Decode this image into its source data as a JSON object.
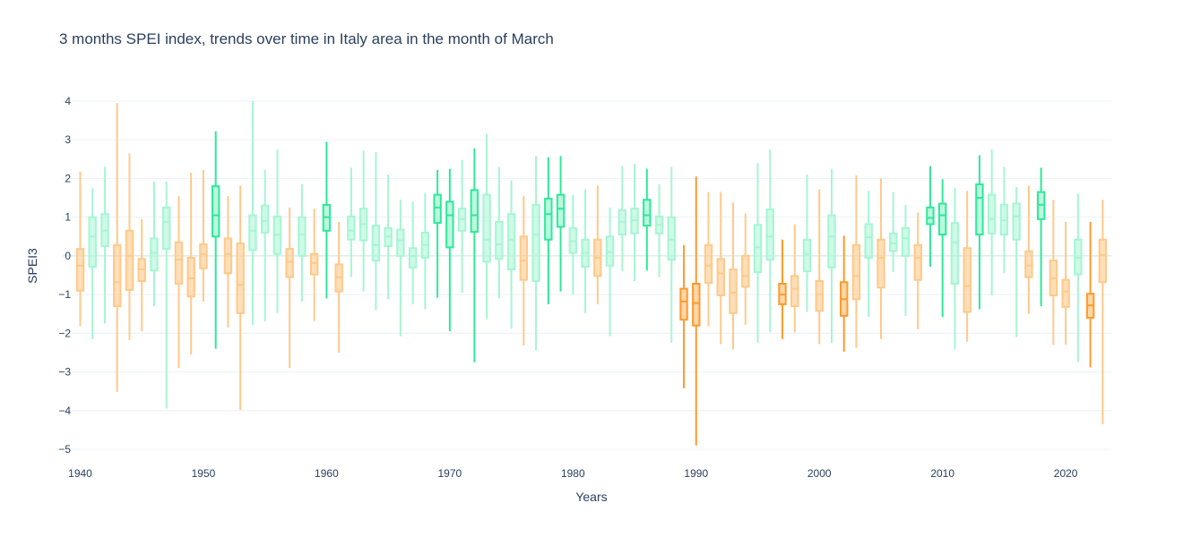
{
  "chart_data": {
    "type": "box",
    "title": "3 months SPEI index, trends over time in Italy area in the month of March",
    "xlabel": "Years",
    "ylabel": "SPEI3",
    "xlim": [
      1939.6,
      2023.7
    ],
    "ylim": [
      -5.3,
      4.3
    ],
    "x_ticks": [
      1940,
      1950,
      1960,
      1970,
      1980,
      1990,
      2000,
      2010,
      2020
    ],
    "y_ticks": [
      4,
      3,
      2,
      1,
      0,
      -1,
      -2,
      -3,
      -4,
      -5
    ],
    "y_tick_labels": [
      "4",
      "3",
      "2",
      "1",
      "0",
      "−1",
      "−2",
      "−3",
      "−4",
      "−5"
    ],
    "grid": true,
    "legend": "none",
    "colors": {
      "wet_strong": "#2ee89a",
      "wet_light": "#a6f5d4",
      "dry_strong": "#ff9a2e",
      "dry_light": "#ffc98a",
      "grid": "#ebf0f8",
      "zero_line": "#c8e6d8"
    },
    "boxes": [
      {
        "year": 1940,
        "q1": -0.9,
        "median": -0.25,
        "q3": 0.18,
        "low": -1.82,
        "high": 2.18,
        "cls": "dry_light"
      },
      {
        "year": 1941,
        "q1": -0.28,
        "median": 0.5,
        "q3": 1.0,
        "low": -2.15,
        "high": 1.75,
        "cls": "wet_light"
      },
      {
        "year": 1942,
        "q1": 0.25,
        "median": 0.65,
        "q3": 1.08,
        "low": -1.75,
        "high": 2.3,
        "cls": "wet_light"
      },
      {
        "year": 1943,
        "q1": -1.3,
        "median": -0.68,
        "q3": 0.28,
        "low": -3.52,
        "high": 3.95,
        "cls": "dry_light"
      },
      {
        "year": 1944,
        "q1": -0.88,
        "median": 0.0,
        "q3": 0.65,
        "low": -2.18,
        "high": 2.65,
        "cls": "dry_light"
      },
      {
        "year": 1945,
        "q1": -0.65,
        "median": -0.35,
        "q3": -0.08,
        "low": -1.95,
        "high": 0.95,
        "cls": "dry_light"
      },
      {
        "year": 1946,
        "q1": -0.38,
        "median": 0.08,
        "q3": 0.45,
        "low": -1.3,
        "high": 1.92,
        "cls": "wet_light"
      },
      {
        "year": 1947,
        "q1": 0.18,
        "median": 0.88,
        "q3": 1.25,
        "low": -3.95,
        "high": 1.92,
        "cls": "wet_light"
      },
      {
        "year": 1948,
        "q1": -0.72,
        "median": -0.1,
        "q3": 0.35,
        "low": -2.9,
        "high": 1.55,
        "cls": "dry_light"
      },
      {
        "year": 1949,
        "q1": -1.05,
        "median": -0.58,
        "q3": -0.05,
        "low": -2.55,
        "high": 2.15,
        "cls": "dry_light"
      },
      {
        "year": 1950,
        "q1": -0.32,
        "median": 0.05,
        "q3": 0.3,
        "low": -1.18,
        "high": 2.22,
        "cls": "dry_light"
      },
      {
        "year": 1951,
        "q1": 0.5,
        "median": 1.05,
        "q3": 1.8,
        "low": -2.4,
        "high": 3.22,
        "cls": "wet_strong"
      },
      {
        "year": 1952,
        "q1": -0.45,
        "median": 0.05,
        "q3": 0.45,
        "low": -1.85,
        "high": 1.55,
        "cls": "dry_light"
      },
      {
        "year": 1953,
        "q1": -1.48,
        "median": -0.75,
        "q3": 0.32,
        "low": -3.98,
        "high": 1.82,
        "cls": "dry_light"
      },
      {
        "year": 1954,
        "q1": 0.15,
        "median": 0.65,
        "q3": 1.05,
        "low": -1.78,
        "high": 4.0,
        "cls": "wet_light"
      },
      {
        "year": 1955,
        "q1": 0.6,
        "median": 0.9,
        "q3": 1.3,
        "low": -1.7,
        "high": 2.22,
        "cls": "wet_light"
      },
      {
        "year": 1956,
        "q1": 0.05,
        "median": 0.55,
        "q3": 1.02,
        "low": -1.48,
        "high": 2.75,
        "cls": "wet_light"
      },
      {
        "year": 1957,
        "q1": -0.55,
        "median": -0.15,
        "q3": 0.18,
        "low": -2.9,
        "high": 1.25,
        "cls": "dry_light"
      },
      {
        "year": 1958,
        "q1": 0.0,
        "median": 0.55,
        "q3": 1.0,
        "low": -1.18,
        "high": 1.85,
        "cls": "wet_light"
      },
      {
        "year": 1959,
        "q1": -0.48,
        "median": -0.18,
        "q3": 0.05,
        "low": -1.68,
        "high": 1.22,
        "cls": "dry_light"
      },
      {
        "year": 1960,
        "q1": 0.65,
        "median": 1.0,
        "q3": 1.32,
        "low": -1.1,
        "high": 2.95,
        "cls": "wet_strong"
      },
      {
        "year": 1961,
        "q1": -0.92,
        "median": -0.55,
        "q3": -0.22,
        "low": -2.5,
        "high": 0.88,
        "cls": "dry_light"
      },
      {
        "year": 1962,
        "q1": 0.42,
        "median": 0.65,
        "q3": 1.02,
        "low": -0.55,
        "high": 2.28,
        "cls": "wet_light"
      },
      {
        "year": 1963,
        "q1": 0.4,
        "median": 0.82,
        "q3": 1.22,
        "low": -0.92,
        "high": 2.72,
        "cls": "wet_light"
      },
      {
        "year": 1964,
        "q1": -0.12,
        "median": 0.28,
        "q3": 0.78,
        "low": -1.4,
        "high": 2.68,
        "cls": "wet_light"
      },
      {
        "year": 1965,
        "q1": 0.25,
        "median": 0.5,
        "q3": 0.72,
        "low": -1.12,
        "high": 2.1,
        "cls": "wet_light"
      },
      {
        "year": 1966,
        "q1": 0.0,
        "median": 0.4,
        "q3": 0.68,
        "low": -2.08,
        "high": 1.45,
        "cls": "wet_light"
      },
      {
        "year": 1967,
        "q1": -0.3,
        "median": 0.0,
        "q3": 0.2,
        "low": -1.25,
        "high": 1.4,
        "cls": "wet_light"
      },
      {
        "year": 1968,
        "q1": -0.05,
        "median": 0.28,
        "q3": 0.6,
        "low": -1.38,
        "high": 1.62,
        "cls": "wet_light"
      },
      {
        "year": 1969,
        "q1": 0.85,
        "median": 1.25,
        "q3": 1.58,
        "low": -1.08,
        "high": 2.22,
        "cls": "wet_strong"
      },
      {
        "year": 1970,
        "q1": 0.22,
        "median": 1.05,
        "q3": 1.4,
        "low": -1.95,
        "high": 2.25,
        "cls": "wet_strong"
      },
      {
        "year": 1971,
        "q1": 0.65,
        "median": 0.95,
        "q3": 1.22,
        "low": -0.95,
        "high": 2.48,
        "cls": "wet_light"
      },
      {
        "year": 1972,
        "q1": 0.62,
        "median": 1.05,
        "q3": 1.7,
        "low": -2.75,
        "high": 2.78,
        "cls": "wet_strong"
      },
      {
        "year": 1973,
        "q1": -0.15,
        "median": 0.42,
        "q3": 1.58,
        "low": -1.62,
        "high": 3.15,
        "cls": "wet_light"
      },
      {
        "year": 1974,
        "q1": -0.08,
        "median": 0.3,
        "q3": 0.88,
        "low": -1.1,
        "high": 2.3,
        "cls": "wet_light"
      },
      {
        "year": 1975,
        "q1": -0.35,
        "median": 0.42,
        "q3": 1.08,
        "low": -1.88,
        "high": 1.95,
        "cls": "wet_light"
      },
      {
        "year": 1976,
        "q1": -0.62,
        "median": -0.12,
        "q3": 0.5,
        "low": -2.32,
        "high": 1.55,
        "cls": "dry_light"
      },
      {
        "year": 1977,
        "q1": -0.65,
        "median": 0.55,
        "q3": 1.32,
        "low": -2.45,
        "high": 2.58,
        "cls": "wet_light"
      },
      {
        "year": 1978,
        "q1": 0.42,
        "median": 1.08,
        "q3": 1.48,
        "low": -1.25,
        "high": 2.55,
        "cls": "wet_strong"
      },
      {
        "year": 1979,
        "q1": 0.75,
        "median": 1.22,
        "q3": 1.58,
        "low": -0.92,
        "high": 2.58,
        "cls": "wet_strong"
      },
      {
        "year": 1980,
        "q1": 0.08,
        "median": 0.38,
        "q3": 0.72,
        "low": -1.0,
        "high": 1.58,
        "cls": "wet_light"
      },
      {
        "year": 1981,
        "q1": -0.28,
        "median": 0.08,
        "q3": 0.42,
        "low": -1.48,
        "high": 1.72,
        "cls": "wet_light"
      },
      {
        "year": 1982,
        "q1": -0.52,
        "median": -0.05,
        "q3": 0.42,
        "low": -1.25,
        "high": 1.82,
        "cls": "dry_light"
      },
      {
        "year": 1983,
        "q1": -0.25,
        "median": 0.1,
        "q3": 0.5,
        "low": -2.08,
        "high": 1.25,
        "cls": "wet_light"
      },
      {
        "year": 1984,
        "q1": 0.55,
        "median": 0.88,
        "q3": 1.18,
        "low": -0.4,
        "high": 2.32,
        "cls": "wet_light"
      },
      {
        "year": 1985,
        "q1": 0.58,
        "median": 0.92,
        "q3": 1.22,
        "low": -0.65,
        "high": 2.38,
        "cls": "wet_light"
      },
      {
        "year": 1986,
        "q1": 0.78,
        "median": 1.05,
        "q3": 1.45,
        "low": -0.38,
        "high": 2.25,
        "cls": "wet_strong"
      },
      {
        "year": 1987,
        "q1": 0.58,
        "median": 0.8,
        "q3": 1.02,
        "low": -0.55,
        "high": 1.85,
        "cls": "wet_light"
      },
      {
        "year": 1988,
        "q1": -0.1,
        "median": 0.42,
        "q3": 1.0,
        "low": -2.25,
        "high": 2.3,
        "cls": "wet_light"
      },
      {
        "year": 1989,
        "q1": -1.65,
        "median": -1.18,
        "q3": -0.85,
        "low": -3.42,
        "high": 0.28,
        "cls": "dry_strong"
      },
      {
        "year": 1990,
        "q1": -1.8,
        "median": -1.22,
        "q3": -0.72,
        "low": -4.9,
        "high": 2.05,
        "cls": "dry_strong"
      },
      {
        "year": 1991,
        "q1": -0.7,
        "median": -0.25,
        "q3": 0.28,
        "low": -1.82,
        "high": 1.65,
        "cls": "dry_light"
      },
      {
        "year": 1992,
        "q1": -1.02,
        "median": -0.45,
        "q3": -0.08,
        "low": -2.28,
        "high": 1.65,
        "cls": "dry_light"
      },
      {
        "year": 1993,
        "q1": -1.48,
        "median": -0.95,
        "q3": -0.35,
        "low": -2.42,
        "high": 1.38,
        "cls": "dry_light"
      },
      {
        "year": 1994,
        "q1": -0.8,
        "median": -0.52,
        "q3": 0.0,
        "low": -1.78,
        "high": 1.1,
        "cls": "dry_light"
      },
      {
        "year": 1995,
        "q1": -0.42,
        "median": 0.22,
        "q3": 0.8,
        "low": -2.25,
        "high": 2.4,
        "cls": "wet_light"
      },
      {
        "year": 1996,
        "q1": -0.1,
        "median": 0.5,
        "q3": 1.2,
        "low": -1.98,
        "high": 2.75,
        "cls": "wet_light"
      },
      {
        "year": 1997,
        "q1": -1.25,
        "median": -1.0,
        "q3": -0.72,
        "low": -2.15,
        "high": 0.42,
        "cls": "dry_strong"
      },
      {
        "year": 1998,
        "q1": -1.3,
        "median": -0.85,
        "q3": -0.52,
        "low": -1.98,
        "high": 0.82,
        "cls": "dry_light"
      },
      {
        "year": 1999,
        "q1": -0.4,
        "median": 0.05,
        "q3": 0.42,
        "low": -1.45,
        "high": 2.1,
        "cls": "wet_light"
      },
      {
        "year": 2000,
        "q1": -1.42,
        "median": -1.0,
        "q3": -0.65,
        "low": -2.28,
        "high": 1.72,
        "cls": "dry_light"
      },
      {
        "year": 2001,
        "q1": -0.3,
        "median": 0.5,
        "q3": 1.05,
        "low": -2.25,
        "high": 2.25,
        "cls": "wet_light"
      },
      {
        "year": 2002,
        "q1": -1.55,
        "median": -1.12,
        "q3": -0.68,
        "low": -2.48,
        "high": 0.52,
        "cls": "dry_strong"
      },
      {
        "year": 2003,
        "q1": -1.12,
        "median": -0.52,
        "q3": 0.28,
        "low": -2.38,
        "high": 2.08,
        "cls": "dry_light"
      },
      {
        "year": 2004,
        "q1": -0.05,
        "median": 0.48,
        "q3": 0.82,
        "low": -1.58,
        "high": 1.68,
        "cls": "wet_light"
      },
      {
        "year": 2005,
        "q1": -0.82,
        "median": -0.05,
        "q3": 0.42,
        "low": -2.15,
        "high": 2.0,
        "cls": "dry_light"
      },
      {
        "year": 2006,
        "q1": 0.12,
        "median": 0.32,
        "q3": 0.58,
        "low": -0.42,
        "high": 1.65,
        "cls": "wet_light"
      },
      {
        "year": 2007,
        "q1": 0.0,
        "median": 0.45,
        "q3": 0.72,
        "low": -1.55,
        "high": 1.32,
        "cls": "wet_light"
      },
      {
        "year": 2008,
        "q1": -0.62,
        "median": -0.05,
        "q3": 0.28,
        "low": -1.9,
        "high": 1.12,
        "cls": "dry_light"
      },
      {
        "year": 2009,
        "q1": 0.82,
        "median": 0.98,
        "q3": 1.25,
        "low": -0.28,
        "high": 2.32,
        "cls": "wet_strong"
      },
      {
        "year": 2010,
        "q1": 0.55,
        "median": 1.05,
        "q3": 1.35,
        "low": -1.58,
        "high": 1.98,
        "cls": "wet_strong"
      },
      {
        "year": 2011,
        "q1": -0.72,
        "median": 0.35,
        "q3": 0.85,
        "low": -2.42,
        "high": 1.75,
        "cls": "wet_light"
      },
      {
        "year": 2012,
        "q1": -1.45,
        "median": -0.78,
        "q3": 0.2,
        "low": -2.22,
        "high": 1.68,
        "cls": "dry_light"
      },
      {
        "year": 2013,
        "q1": 0.55,
        "median": 1.5,
        "q3": 1.85,
        "low": -1.38,
        "high": 2.6,
        "cls": "wet_strong"
      },
      {
        "year": 2014,
        "q1": 0.58,
        "median": 0.95,
        "q3": 1.58,
        "low": -1.02,
        "high": 2.75,
        "cls": "wet_light"
      },
      {
        "year": 2015,
        "q1": 0.55,
        "median": 0.92,
        "q3": 1.32,
        "low": -0.45,
        "high": 2.3,
        "cls": "wet_light"
      },
      {
        "year": 2016,
        "q1": 0.42,
        "median": 1.02,
        "q3": 1.35,
        "low": -2.1,
        "high": 1.78,
        "cls": "wet_light"
      },
      {
        "year": 2017,
        "q1": -0.55,
        "median": -0.25,
        "q3": 0.12,
        "low": -1.5,
        "high": 1.82,
        "cls": "dry_light"
      },
      {
        "year": 2018,
        "q1": 0.95,
        "median": 1.32,
        "q3": 1.65,
        "low": -1.3,
        "high": 2.28,
        "cls": "wet_strong"
      },
      {
        "year": 2019,
        "q1": -1.02,
        "median": -0.58,
        "q3": -0.12,
        "low": -2.3,
        "high": 1.45,
        "cls": "dry_light"
      },
      {
        "year": 2020,
        "q1": -1.32,
        "median": -0.92,
        "q3": -0.62,
        "low": -2.3,
        "high": 0.88,
        "cls": "dry_light"
      },
      {
        "year": 2021,
        "q1": -0.48,
        "median": -0.05,
        "q3": 0.42,
        "low": -2.75,
        "high": 1.6,
        "cls": "wet_light"
      },
      {
        "year": 2022,
        "q1": -1.6,
        "median": -1.28,
        "q3": -0.98,
        "low": -2.88,
        "high": 0.88,
        "cls": "dry_strong"
      },
      {
        "year": 2023,
        "q1": -0.68,
        "median": 0.02,
        "q3": 0.42,
        "low": -4.35,
        "high": 1.45,
        "cls": "dry_light"
      }
    ]
  }
}
